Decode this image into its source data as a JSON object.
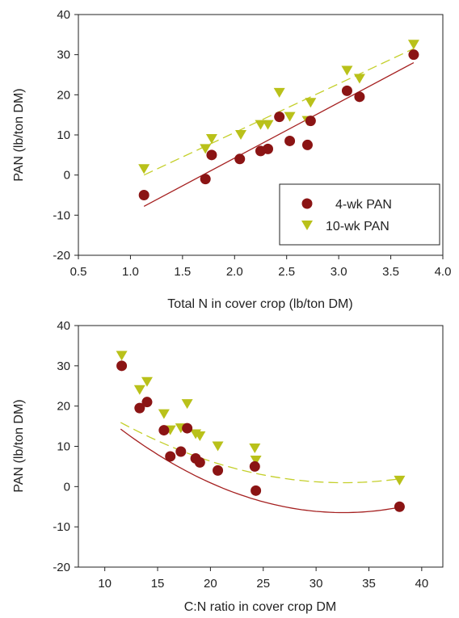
{
  "colors": {
    "series_4wk": "#8b1414",
    "series_10wk": "#b9c11a",
    "fit_4wk": "#a52020",
    "fit_10wk": "#c4cf2a",
    "axis": "#222222"
  },
  "chart_data": [
    {
      "type": "scatter",
      "title": "",
      "xlabel": "Total N in cover crop (lb/ton DM)",
      "ylabel": "PAN (lb/ton DM)",
      "xlim": [
        0.5,
        4.0
      ],
      "ylim": [
        -20,
        40
      ],
      "xticks": [
        "0.5",
        "1.0",
        "1.5",
        "2.0",
        "2.5",
        "3.0",
        "3.5",
        "4.0"
      ],
      "yticks": [
        "-20",
        "-10",
        "0",
        "10",
        "20",
        "30",
        "40"
      ],
      "legend": {
        "placement": "bottom-right",
        "entries": [
          "4-wk PAN",
          "10-wk PAN"
        ]
      },
      "series": [
        {
          "name": "4-wk PAN",
          "marker": "circle",
          "points": [
            [
              1.13,
              -5
            ],
            [
              1.72,
              -1
            ],
            [
              1.78,
              5
            ],
            [
              2.05,
              4
            ],
            [
              2.25,
              6
            ],
            [
              2.32,
              6.5
            ],
            [
              2.43,
              14.5
            ],
            [
              2.53,
              8.5
            ],
            [
              2.7,
              7.5
            ],
            [
              2.73,
              13.5
            ],
            [
              3.08,
              21
            ],
            [
              3.2,
              19.5
            ],
            [
              3.72,
              30
            ]
          ],
          "fit": {
            "kind": "linear",
            "x": [
              1.13,
              3.72
            ],
            "y": [
              -7.8,
              28
            ]
          }
        },
        {
          "name": "10-wk PAN",
          "marker": "triangle-down",
          "points": [
            [
              1.13,
              1.5
            ],
            [
              1.72,
              6.5
            ],
            [
              1.78,
              9
            ],
            [
              2.06,
              10
            ],
            [
              2.25,
              12.5
            ],
            [
              2.32,
              12.5
            ],
            [
              2.43,
              20.5
            ],
            [
              2.53,
              14.5
            ],
            [
              2.7,
              13.5
            ],
            [
              2.73,
              18
            ],
            [
              3.08,
              26
            ],
            [
              3.2,
              24
            ],
            [
              3.72,
              32.5
            ]
          ],
          "fit": {
            "kind": "linear",
            "x": [
              1.13,
              3.72
            ],
            "y": [
              0,
              31.5
            ]
          }
        }
      ]
    },
    {
      "type": "scatter",
      "title": "",
      "xlabel": "C:N ratio in cover crop DM",
      "ylabel": "PAN (lb/ton DM)",
      "xlim": [
        7.5,
        42
      ],
      "ylim": [
        -20,
        40
      ],
      "xticks": [
        "10",
        "15",
        "20",
        "25",
        "30",
        "35",
        "40"
      ],
      "xtick_values": [
        10,
        15,
        20,
        25,
        30,
        35,
        40
      ],
      "yticks": [
        "-20",
        "-10",
        "0",
        "10",
        "20",
        "30",
        "40"
      ],
      "series": [
        {
          "name": "4-wk PAN",
          "marker": "circle",
          "points": [
            [
              11.6,
              30
            ],
            [
              13.3,
              19.5
            ],
            [
              14,
              21
            ],
            [
              15.6,
              14
            ],
            [
              16.2,
              7.5
            ],
            [
              17.2,
              8.7
            ],
            [
              17.8,
              14.5
            ],
            [
              18.6,
              7
            ],
            [
              19,
              6
            ],
            [
              20.7,
              4
            ],
            [
              24.2,
              5
            ],
            [
              24.3,
              -1
            ],
            [
              37.9,
              -5
            ]
          ],
          "fit": {
            "kind": "quadratic",
            "a": 0.0467,
            "b": -3.043,
            "c": 43.11,
            "xrange": [
              11.5,
              37.9
            ]
          }
        },
        {
          "name": "10-wk PAN",
          "marker": "triangle-down",
          "points": [
            [
              11.6,
              32.5
            ],
            [
              13.3,
              24
            ],
            [
              14,
              26
            ],
            [
              15.6,
              18
            ],
            [
              16.2,
              14
            ],
            [
              17.2,
              14.5
            ],
            [
              17.8,
              20.5
            ],
            [
              18.6,
              13
            ],
            [
              19,
              12.5
            ],
            [
              20.7,
              10
            ],
            [
              24.2,
              9.5
            ],
            [
              24.3,
              6.5
            ],
            [
              37.9,
              1.5
            ]
          ],
          "fit": {
            "kind": "quadratic",
            "a": 0.0337,
            "b": -2.196,
            "c": 36.74,
            "xrange": [
              11.5,
              37.9
            ]
          }
        }
      ]
    }
  ]
}
